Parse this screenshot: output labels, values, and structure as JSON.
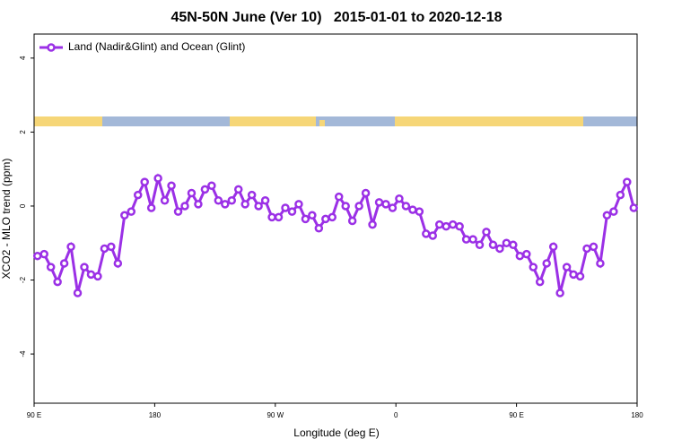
{
  "chart_data": {
    "type": "line",
    "title": "45N-50N June (Ver 10)   2015-01-01 to 2020-12-18",
    "x_label": "Longitude (deg E)",
    "y_label": "XCO2 - MLO trend (ppm)",
    "legend_position": "top-left",
    "x": [
      92.5,
      97.5,
      102.5,
      107.5,
      112.5,
      117.5,
      122.5,
      127.5,
      132.5,
      137.5,
      142.5,
      147.5,
      152.5,
      157.5,
      162.5,
      167.5,
      172.5,
      177.5,
      182.5,
      187.5,
      192.5,
      197.5,
      202.5,
      207.5,
      212.5,
      217.5,
      222.5,
      227.5,
      232.5,
      237.5,
      242.5,
      247.5,
      252.5,
      257.5,
      262.5,
      267.5,
      272.5,
      277.5,
      282.5,
      287.5,
      292.5,
      297.5,
      302.5,
      307.5,
      312.5,
      317.5,
      322.5,
      327.5,
      332.5,
      337.5,
      342.5,
      347.5,
      352.5,
      357.5,
      362.5,
      367.5,
      372.5,
      377.5,
      382.5,
      387.5,
      392.5,
      397.5,
      402.5,
      407.5,
      412.5,
      417.5,
      422.5,
      427.5,
      432.5,
      437.5,
      442.5,
      447.5,
      452.5,
      457.5,
      462.5,
      467.5,
      472.5,
      477.5,
      482.5,
      487.5,
      492.5,
      497.5,
      502.5,
      507.5,
      512.5,
      517.5,
      522.5,
      527.5,
      532.5,
      537.5
    ],
    "series": [
      {
        "name": "Land (Nadir&Glint) and Ocean (Glint)",
        "color": "#9b30e6",
        "values": [
          -1.35,
          -1.3,
          -1.65,
          -2.05,
          -1.55,
          -1.1,
          -2.35,
          -1.65,
          -1.85,
          -1.9,
          -1.15,
          -1.1,
          -1.55,
          -0.25,
          -0.15,
          0.3,
          0.65,
          -0.05,
          0.75,
          0.15,
          0.55,
          -0.15,
          0.0,
          0.35,
          0.05,
          0.45,
          0.55,
          0.15,
          0.05,
          0.15,
          0.45,
          0.05,
          0.3,
          0.0,
          0.15,
          -0.3,
          -0.3,
          -0.05,
          -0.15,
          0.05,
          -0.35,
          -0.25,
          -0.6,
          -0.35,
          -0.3,
          0.25,
          0.0,
          -0.4,
          0.0,
          0.35,
          -0.5,
          0.1,
          0.05,
          -0.05,
          0.2,
          0.0,
          -0.1,
          -0.15,
          -0.75,
          -0.8,
          -0.5,
          -0.55,
          -0.5,
          -0.55,
          -0.9,
          -0.9,
          -1.05,
          -0.7,
          -1.05,
          -1.15,
          -1.0,
          -1.05,
          -1.35,
          -1.3,
          -1.65,
          -2.05,
          -1.55,
          -1.1,
          -2.35,
          -1.65,
          -1.85,
          -1.9,
          -1.15,
          -1.1,
          -1.55,
          -0.25,
          -0.15,
          0.3,
          0.65,
          -0.05
        ]
      }
    ],
    "xlim": [
      90,
      540
    ],
    "xticks": [
      {
        "value": 90,
        "label": "90 E"
      },
      180,
      {
        "value": 270,
        "label": "90 W"
      },
      {
        "value": 360,
        "label": "0"
      },
      {
        "value": 450,
        "label": "90 E"
      },
      {
        "value": 540,
        "label": "180"
      }
    ],
    "ylim": [
      -5.33,
      4.65
    ],
    "yticks": [
      -4,
      -2,
      0,
      2,
      4
    ],
    "grid": false
  }
}
